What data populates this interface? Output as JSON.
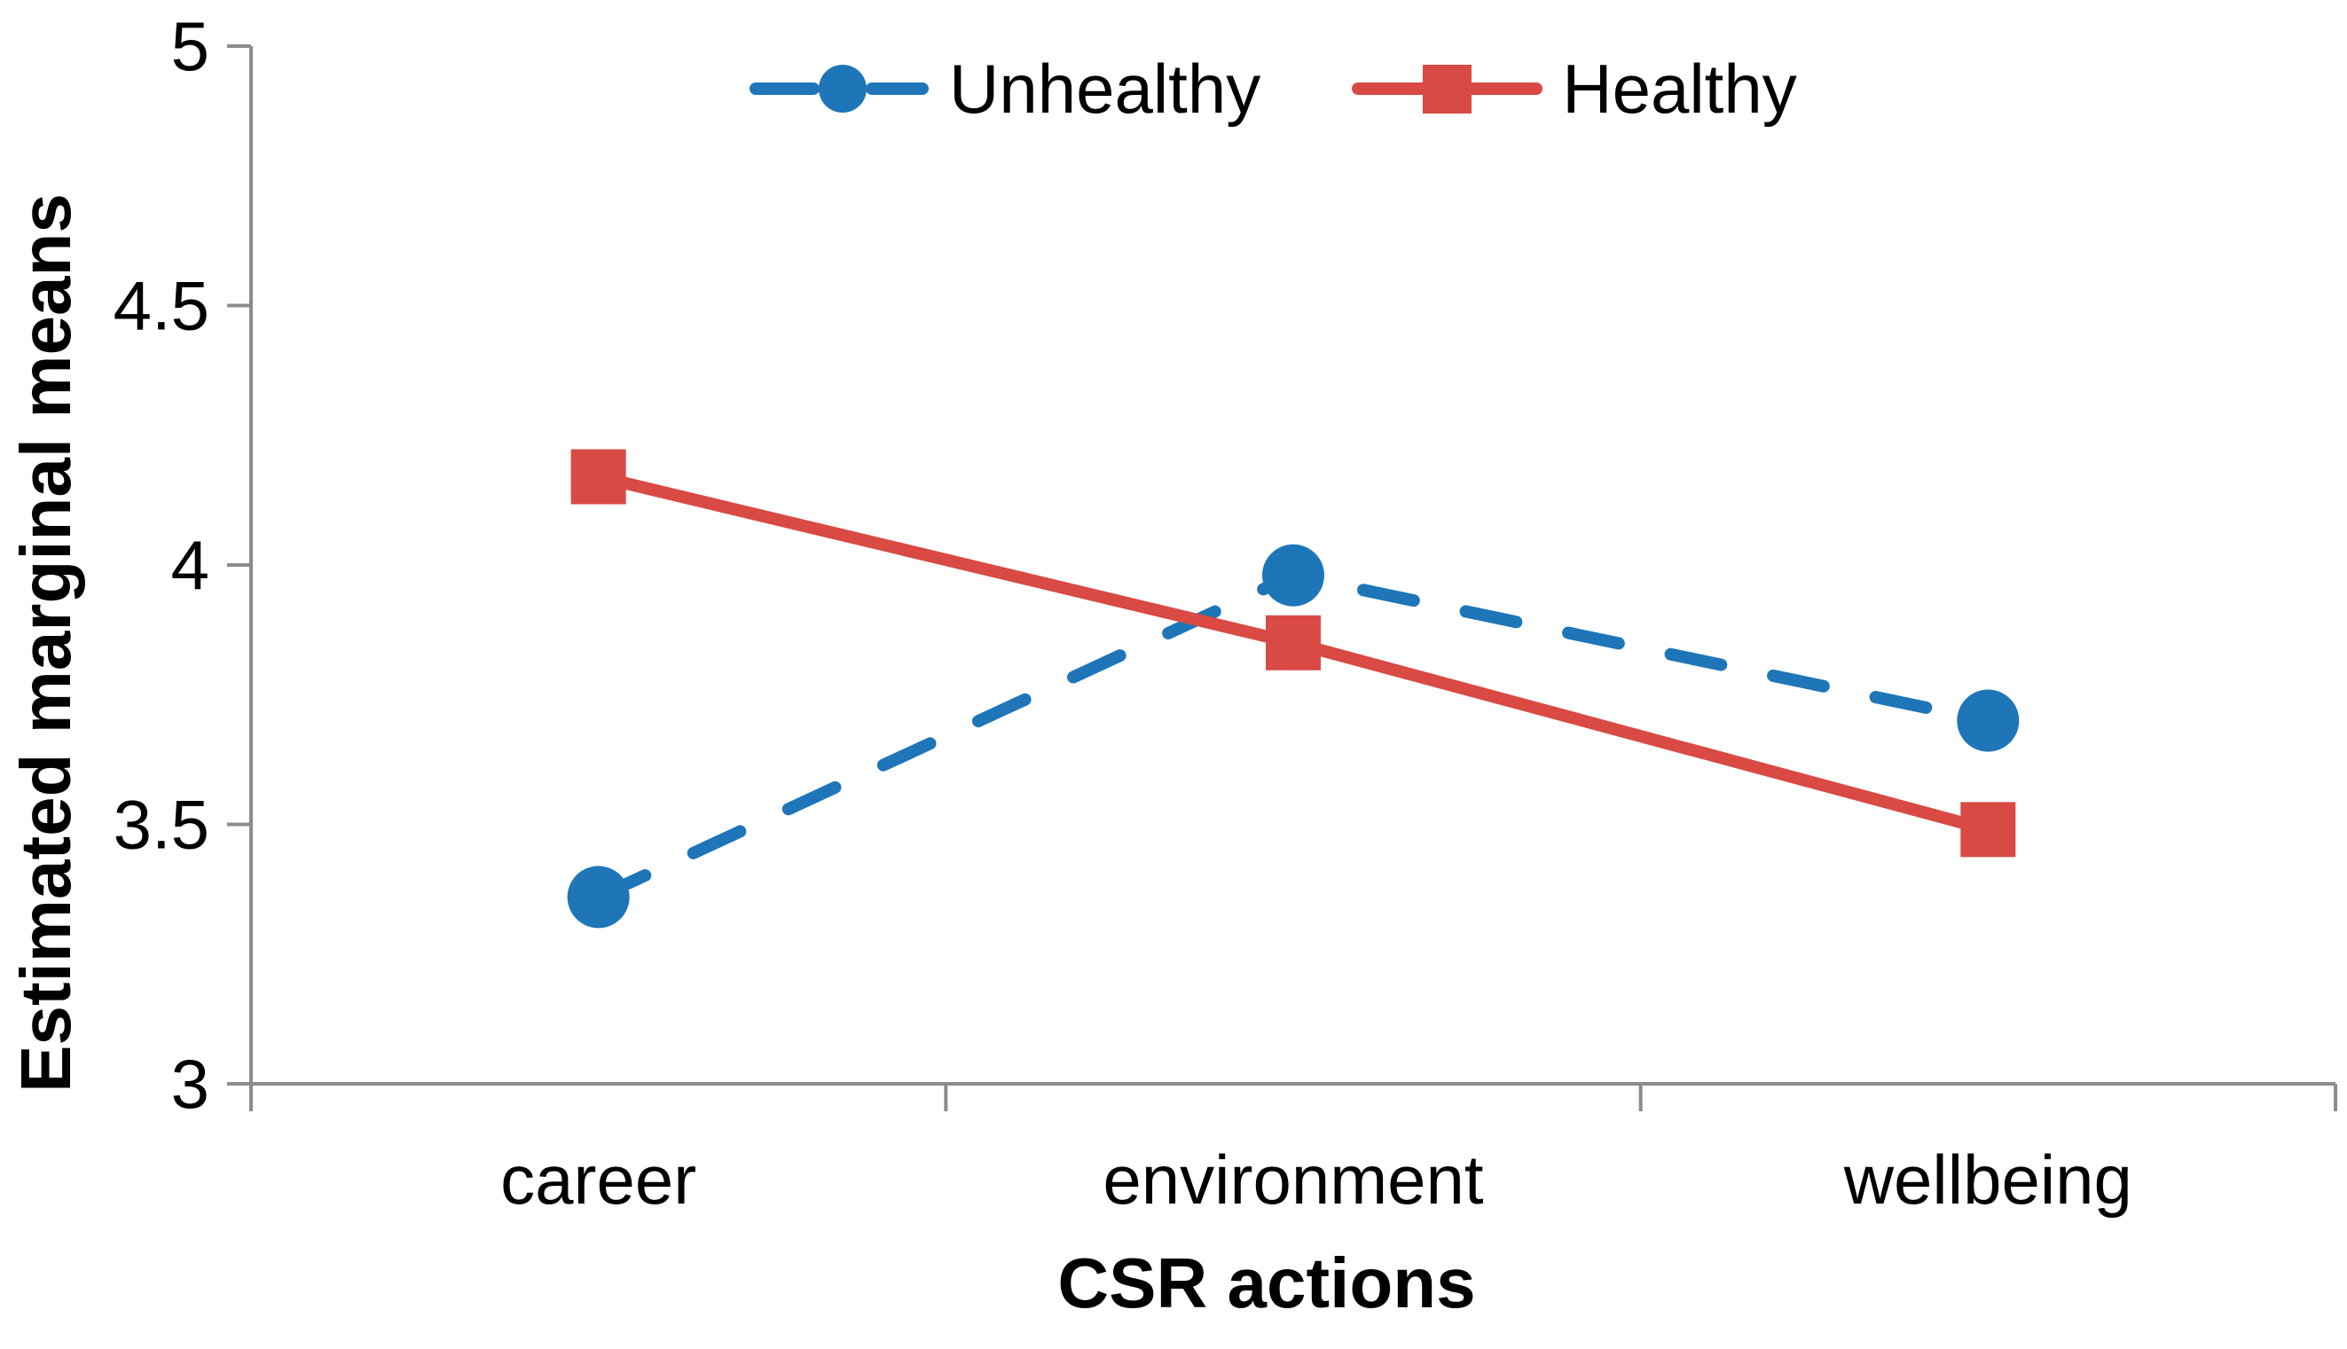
{
  "figure": {
    "background": "#ffffff",
    "axis_color": "#8C8C8C",
    "text_color": "#000000"
  },
  "y_axis": {
    "title": "Estimated marginal means"
  },
  "x_axis": {
    "title": "CSR actions"
  },
  "legend": {
    "items": [
      {
        "label": "Unhealthy",
        "color": "#1E76B9",
        "marker": "circle",
        "line_style": "dashed"
      },
      {
        "label": "Healthy",
        "color": "#D84A43",
        "marker": "square",
        "line_style": "solid"
      }
    ]
  },
  "chart_data": {
    "type": "line",
    "title": "",
    "xlabel": "CSR actions",
    "ylabel": "Estimated marginal means",
    "categories": [
      "career",
      "environment",
      "wellbeing"
    ],
    "ylim": [
      3,
      5
    ],
    "yticks": [
      3,
      3.5,
      4,
      4.5,
      5
    ],
    "grid": false,
    "legend_position": "top-center",
    "series": [
      {
        "name": "Unhealthy",
        "color": "#1E76B9",
        "marker": "circle",
        "line_style": "dashed",
        "values": [
          3.36,
          3.98,
          3.7
        ]
      },
      {
        "name": "Healthy",
        "color": "#D84A43",
        "marker": "square",
        "line_style": "solid",
        "values": [
          4.17,
          3.85,
          3.49
        ]
      }
    ]
  }
}
